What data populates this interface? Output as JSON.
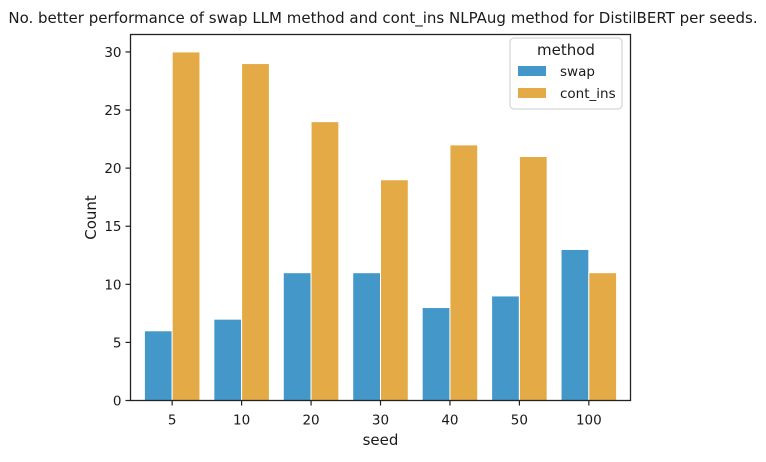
{
  "chart_data": {
    "type": "bar",
    "title": "No. better performance of swap LLM method and cont_ins NLPAug method for DistilBERT per seeds.",
    "xlabel": "seed",
    "ylabel": "Count",
    "categories": [
      "5",
      "10",
      "20",
      "30",
      "40",
      "50",
      "100"
    ],
    "series": [
      {
        "name": "swap",
        "color": "#4398c9",
        "values": [
          6,
          7,
          11,
          11,
          8,
          9,
          13
        ]
      },
      {
        "name": "cont_ins",
        "color": "#e4aa45",
        "values": [
          30,
          29,
          24,
          19,
          22,
          21,
          11
        ]
      }
    ],
    "ylim": [
      0,
      31.5
    ],
    "yticks": [
      0,
      5,
      10,
      15,
      20,
      25,
      30
    ],
    "grid": false,
    "legend": {
      "title": "method",
      "position": "top-right"
    }
  }
}
